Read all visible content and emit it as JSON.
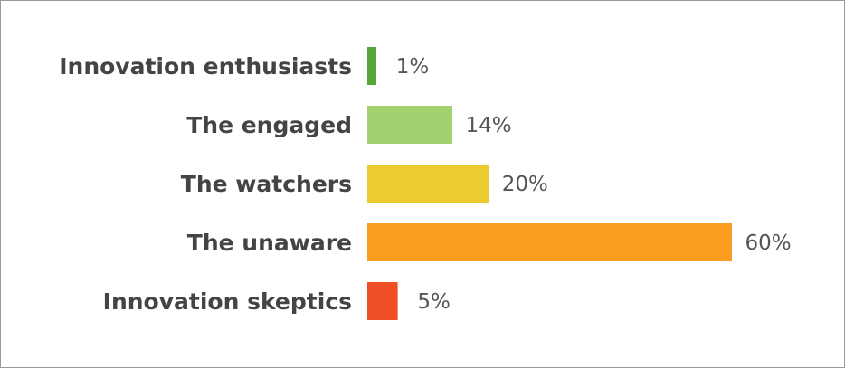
{
  "chart_data": {
    "type": "bar",
    "orientation": "horizontal",
    "categories": [
      "Innovation enthusiasts",
      "The engaged",
      "The watchers",
      "The unaware",
      "Innovation skeptics"
    ],
    "values": [
      1,
      14,
      20,
      60,
      5
    ],
    "value_labels": [
      "1%",
      "14%",
      "20%",
      "60%",
      "5%"
    ],
    "colors": [
      "#56a83c",
      "#a4d16f",
      "#eccb2f",
      "#f89d1e",
      "#f04e24"
    ],
    "title": "",
    "xlabel": "",
    "ylabel": "",
    "xlim": [
      0,
      60
    ],
    "grid": false,
    "legend": "none"
  }
}
